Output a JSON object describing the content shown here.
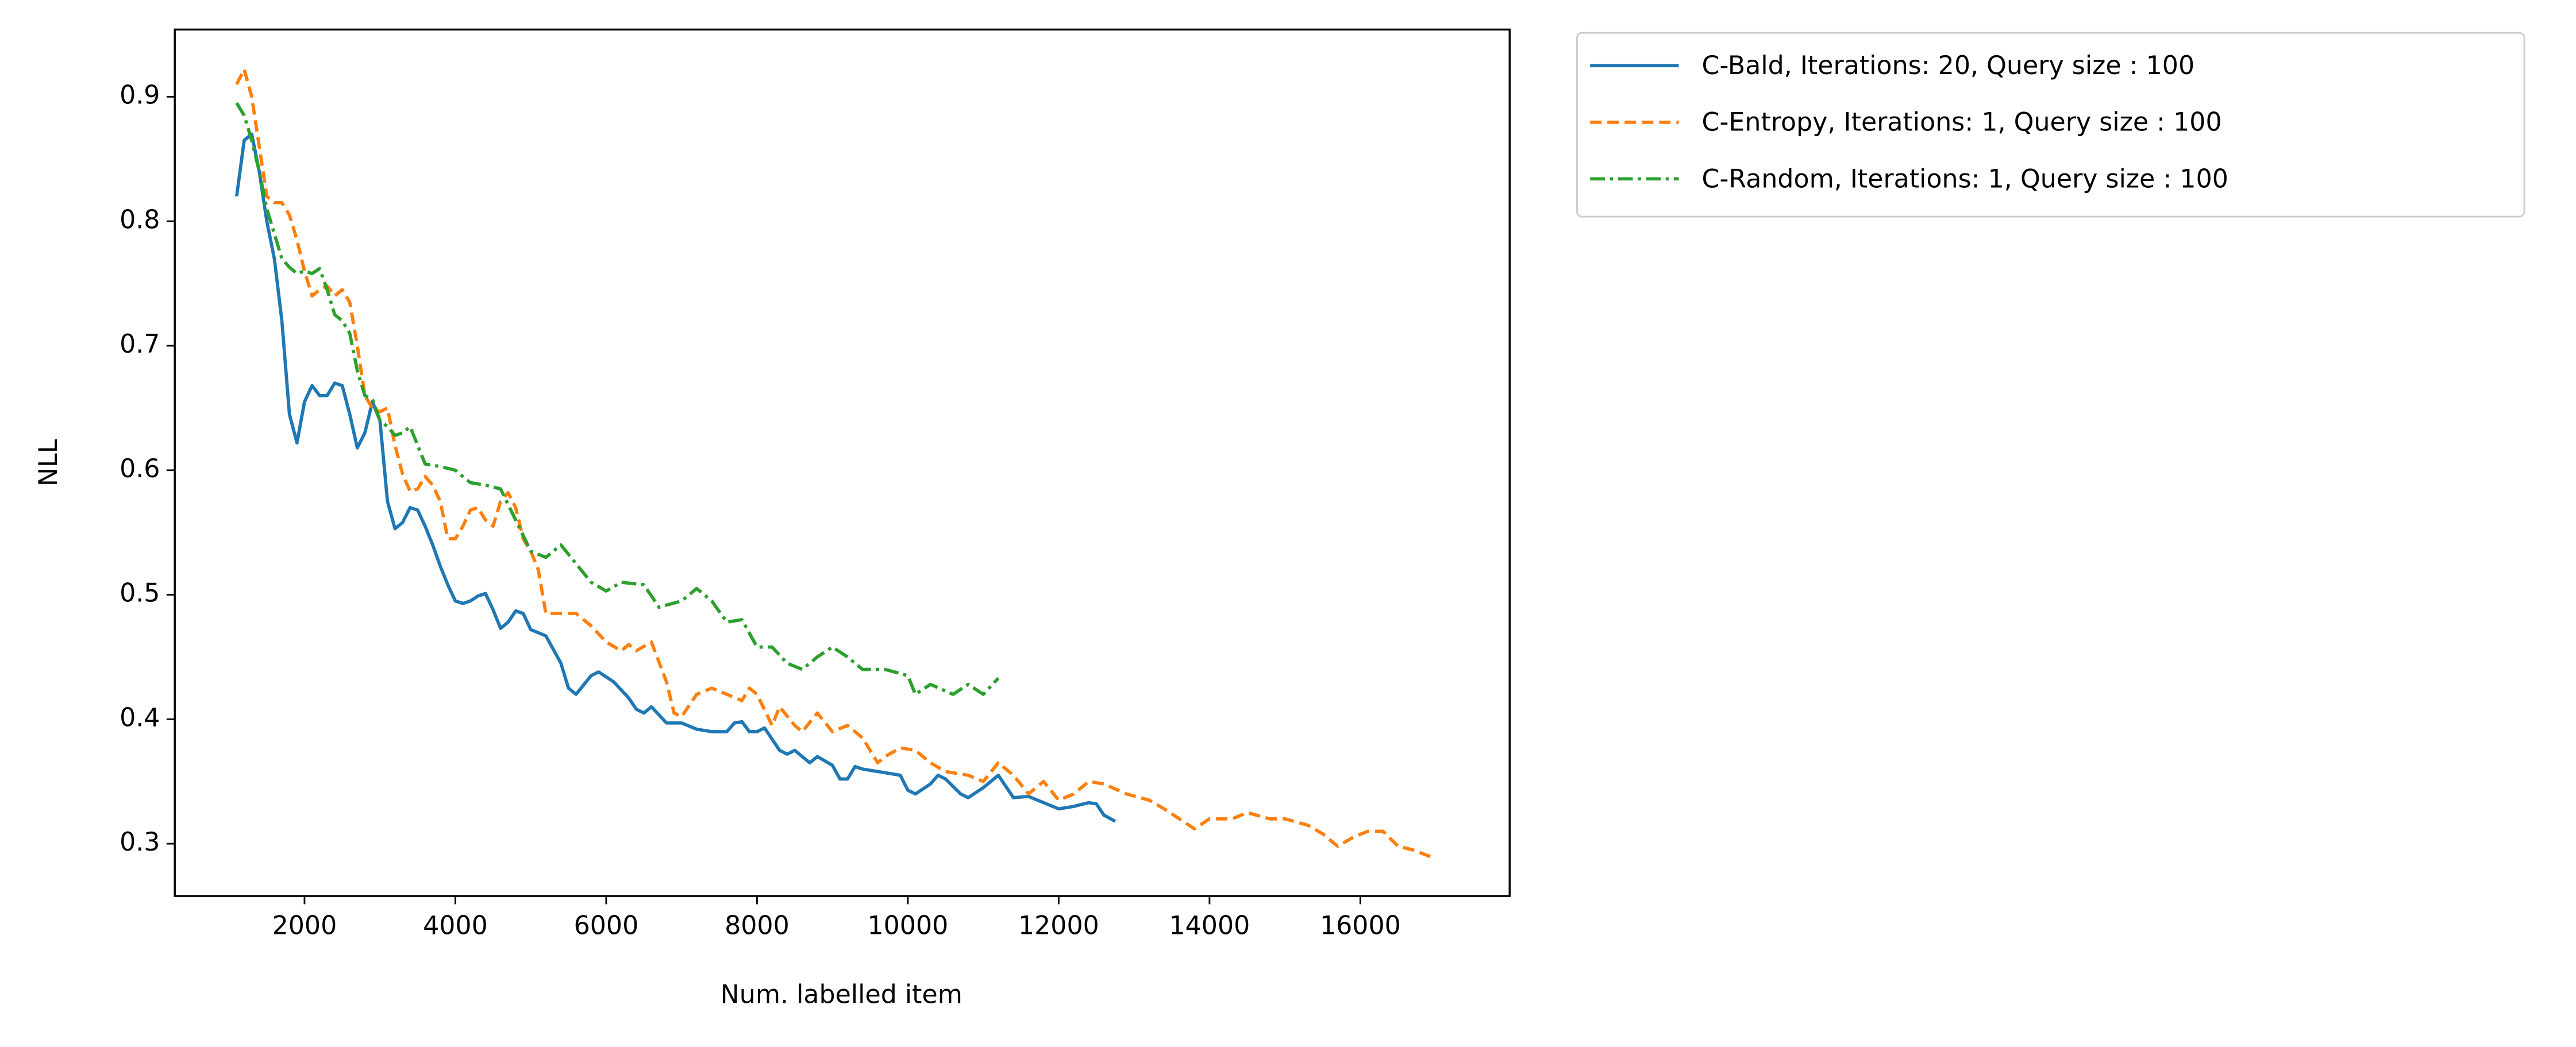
{
  "chart_data": {
    "type": "line",
    "xlabel": "Num. labelled item",
    "ylabel": "NLL",
    "xlim": [
      280,
      17980
    ],
    "ylim": [
      0.258,
      0.954
    ],
    "xticks": [
      2000,
      4000,
      6000,
      8000,
      10000,
      12000,
      14000,
      16000
    ],
    "yticks": [
      0.3,
      0.4,
      0.5,
      0.6,
      0.7,
      0.8,
      0.9
    ],
    "grid": false,
    "legend": "outside upper right",
    "series": [
      {
        "name": "C-Bald, Iterations: 20, Query size : 100",
        "color": "#1f77b4",
        "linestyle": "solid",
        "x": [
          1100,
          1200,
          1300,
          1400,
          1500,
          1600,
          1700,
          1800,
          1900,
          2000,
          2100,
          2200,
          2300,
          2400,
          2500,
          2600,
          2700,
          2800,
          2900,
          3000,
          3100,
          3200,
          3300,
          3400,
          3500,
          3600,
          3700,
          3800,
          3900,
          4000,
          4100,
          4200,
          4300,
          4400,
          4500,
          4600,
          4700,
          4800,
          4900,
          5000,
          5200,
          5400,
          5500,
          5600,
          5800,
          5900,
          6100,
          6300,
          6400,
          6500,
          6600,
          6800,
          7000,
          7200,
          7400,
          7600,
          7700,
          7800,
          7900,
          8000,
          8100,
          8300,
          8400,
          8500,
          8700,
          8800,
          9000,
          9100,
          9200,
          9300,
          9400,
          9600,
          9900,
          10000,
          10100,
          10300,
          10400,
          10500,
          10700,
          10800,
          11000,
          11200,
          11400,
          11600,
          11800,
          12000,
          12200,
          12400,
          12500,
          12600,
          12750
        ],
        "values": [
          0.82,
          0.865,
          0.87,
          0.84,
          0.8,
          0.77,
          0.72,
          0.645,
          0.622,
          0.655,
          0.668,
          0.66,
          0.66,
          0.67,
          0.668,
          0.645,
          0.618,
          0.63,
          0.655,
          0.64,
          0.575,
          0.553,
          0.558,
          0.57,
          0.568,
          0.555,
          0.54,
          0.523,
          0.508,
          0.495,
          0.493,
          0.495,
          0.499,
          0.501,
          0.488,
          0.473,
          0.478,
          0.487,
          0.485,
          0.472,
          0.467,
          0.445,
          0.425,
          0.42,
          0.435,
          0.438,
          0.43,
          0.417,
          0.408,
          0.405,
          0.41,
          0.397,
          0.397,
          0.392,
          0.39,
          0.39,
          0.397,
          0.398,
          0.39,
          0.39,
          0.393,
          0.375,
          0.372,
          0.375,
          0.365,
          0.37,
          0.363,
          0.352,
          0.352,
          0.362,
          0.36,
          0.358,
          0.355,
          0.343,
          0.34,
          0.348,
          0.355,
          0.352,
          0.34,
          0.337,
          0.345,
          0.355,
          0.337,
          0.338,
          0.333,
          0.328,
          0.33,
          0.333,
          0.332,
          0.323,
          0.318
        ]
      },
      {
        "name": "C-Entropy, Iterations: 1, Query size : 100",
        "color": "#ff7f0e",
        "linestyle": "dashed",
        "x": [
          1100,
          1200,
          1300,
          1400,
          1500,
          1600,
          1700,
          1800,
          1900,
          2000,
          2100,
          2200,
          2300,
          2400,
          2500,
          2600,
          2700,
          2800,
          2900,
          3000,
          3100,
          3200,
          3300,
          3400,
          3500,
          3600,
          3700,
          3800,
          3900,
          4000,
          4100,
          4200,
          4300,
          4400,
          4500,
          4600,
          4700,
          4800,
          4900,
          5000,
          5100,
          5200,
          5400,
          5600,
          5800,
          6000,
          6200,
          6300,
          6400,
          6600,
          6800,
          6900,
          7000,
          7200,
          7400,
          7600,
          7800,
          7900,
          8000,
          8200,
          8300,
          8500,
          8600,
          8800,
          9000,
          9200,
          9400,
          9600,
          9700,
          9900,
          10100,
          10300,
          10500,
          10800,
          11000,
          11200,
          11400,
          11600,
          11800,
          12000,
          12200,
          12400,
          12600,
          12900,
          13200,
          13400,
          13600,
          13800,
          14000,
          14300,
          14500,
          14800,
          15000,
          15300,
          15500,
          15700,
          15900,
          16100,
          16300,
          16500,
          16700,
          17000
        ],
        "values": [
          0.91,
          0.922,
          0.9,
          0.86,
          0.82,
          0.815,
          0.815,
          0.805,
          0.785,
          0.76,
          0.74,
          0.745,
          0.748,
          0.74,
          0.745,
          0.735,
          0.7,
          0.66,
          0.65,
          0.647,
          0.65,
          0.62,
          0.597,
          0.583,
          0.585,
          0.595,
          0.588,
          0.575,
          0.545,
          0.545,
          0.555,
          0.568,
          0.57,
          0.56,
          0.555,
          0.575,
          0.582,
          0.57,
          0.545,
          0.535,
          0.52,
          0.485,
          0.485,
          0.485,
          0.475,
          0.462,
          0.455,
          0.46,
          0.455,
          0.462,
          0.43,
          0.405,
          0.402,
          0.42,
          0.425,
          0.42,
          0.415,
          0.425,
          0.42,
          0.395,
          0.41,
          0.395,
          0.39,
          0.405,
          0.39,
          0.395,
          0.385,
          0.365,
          0.37,
          0.377,
          0.375,
          0.365,
          0.358,
          0.355,
          0.35,
          0.365,
          0.355,
          0.34,
          0.35,
          0.335,
          0.34,
          0.35,
          0.348,
          0.34,
          0.335,
          0.328,
          0.32,
          0.312,
          0.32,
          0.32,
          0.325,
          0.32,
          0.32,
          0.315,
          0.308,
          0.298,
          0.305,
          0.31,
          0.31,
          0.298,
          0.295,
          0.288
        ]
      },
      {
        "name": "C-Random, Iterations: 1, Query size : 100",
        "color": "#2ca02c",
        "linestyle": "dashdot",
        "x": [
          1100,
          1200,
          1300,
          1400,
          1500,
          1600,
          1700,
          1800,
          1900,
          2000,
          2100,
          2200,
          2300,
          2400,
          2500,
          2600,
          2700,
          2800,
          2900,
          3000,
          3100,
          3200,
          3300,
          3400,
          3500,
          3600,
          3800,
          4000,
          4200,
          4400,
          4600,
          4800,
          5000,
          5200,
          5400,
          5600,
          5800,
          6000,
          6200,
          6500,
          6700,
          7000,
          7200,
          7400,
          7600,
          7800,
          8000,
          8200,
          8400,
          8600,
          8800,
          9000,
          9200,
          9400,
          9700,
          10000,
          10100,
          10300,
          10600,
          10800,
          11000,
          11200
        ],
        "values": [
          0.895,
          0.885,
          0.865,
          0.84,
          0.81,
          0.79,
          0.77,
          0.763,
          0.758,
          0.76,
          0.758,
          0.762,
          0.745,
          0.725,
          0.72,
          0.71,
          0.68,
          0.66,
          0.657,
          0.64,
          0.635,
          0.628,
          0.63,
          0.635,
          0.62,
          0.605,
          0.603,
          0.6,
          0.59,
          0.588,
          0.585,
          0.56,
          0.535,
          0.53,
          0.54,
          0.525,
          0.51,
          0.503,
          0.51,
          0.508,
          0.49,
          0.495,
          0.505,
          0.495,
          0.478,
          0.48,
          0.458,
          0.458,
          0.445,
          0.44,
          0.45,
          0.458,
          0.45,
          0.44,
          0.44,
          0.435,
          0.42,
          0.428,
          0.42,
          0.428,
          0.42,
          0.433
        ]
      }
    ]
  }
}
